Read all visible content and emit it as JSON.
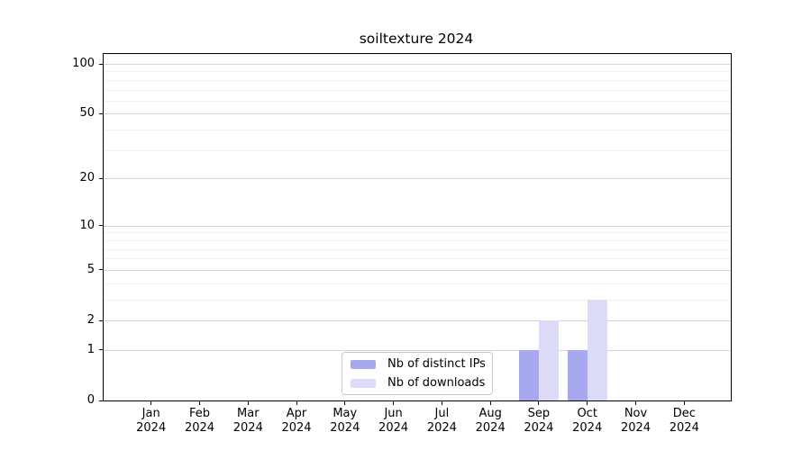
{
  "title": "soiltexture 2024",
  "chart_data": {
    "type": "bar",
    "title": "soiltexture 2024",
    "categories": [
      "Jan 2024",
      "Feb 2024",
      "Mar 2024",
      "Apr 2024",
      "May 2024",
      "Jun 2024",
      "Jul 2024",
      "Aug 2024",
      "Sep 2024",
      "Oct 2024",
      "Nov 2024",
      "Dec 2024"
    ],
    "series": [
      {
        "name": "Nb of distinct IPs",
        "color": "#a8a8f0",
        "values": [
          0,
          0,
          0,
          0,
          0,
          0,
          0,
          0,
          1,
          1,
          0,
          0
        ]
      },
      {
        "name": "Nb of downloads",
        "color": "#dcdcf8",
        "values": [
          0,
          0,
          0,
          0,
          0,
          0,
          0,
          0,
          2,
          3,
          0,
          0
        ]
      }
    ],
    "xlabel": "",
    "ylabel": "",
    "yscale": "log1p",
    "y_axis": {
      "tick_values": [
        0,
        1,
        2,
        5,
        10,
        20,
        50,
        100
      ],
      "tick_labels": [
        "0",
        "1",
        "2",
        "5",
        "10",
        "20",
        "50",
        "100"
      ],
      "minor_gridline_values": [
        3,
        4,
        6,
        7,
        8,
        9,
        30,
        40,
        60,
        70,
        80,
        90
      ],
      "top_value": 114.6
    },
    "grid": {
      "major_color": "#d6d6d6",
      "minor_color": "#f0f0f0"
    },
    "legend": {
      "position": "lower center",
      "border_color": "#c9c9c9"
    },
    "text_color": "#000000",
    "background_color": "#ffffff"
  }
}
